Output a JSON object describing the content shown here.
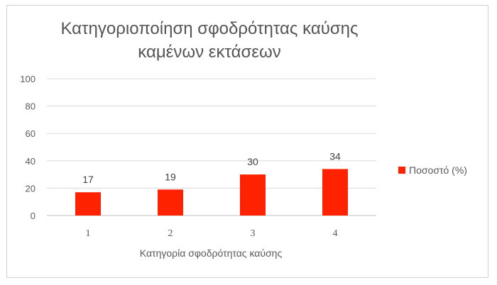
{
  "chart_data": {
    "type": "bar",
    "title_line1": "Κατηγοριοποίηση σφοδρότητας καύσης",
    "title_line2": "καμένων εκτάσεων",
    "xlabel": "Κατηγορία σφοδρότητας καύσης",
    "ylabel": "",
    "categories": [
      "1",
      "2",
      "3",
      "4"
    ],
    "series": [
      {
        "name": "Ποσοστό (%)",
        "values": [
          17,
          19,
          30,
          34
        ],
        "color": "#ff2200"
      }
    ],
    "ylim": [
      0,
      100
    ],
    "yticks": [
      0,
      20,
      40,
      60,
      80,
      100
    ],
    "grid": true,
    "legend_position": "right"
  }
}
